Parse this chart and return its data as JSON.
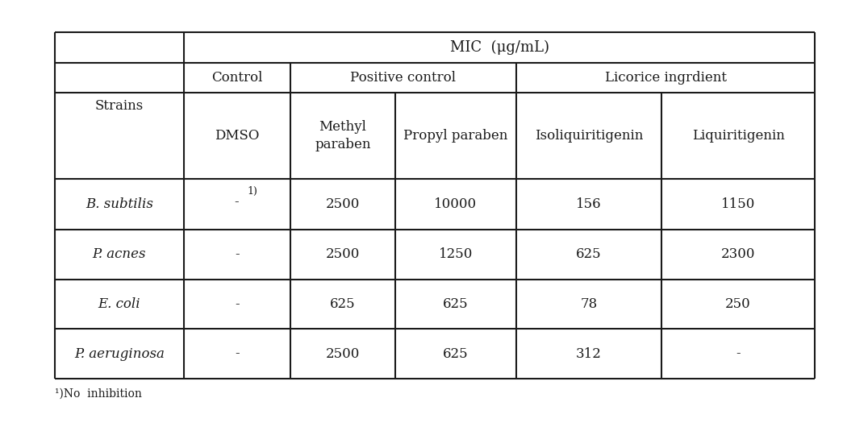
{
  "title_row": "MIC  (μg/mL)",
  "header_row1_labels": [
    "Control",
    "Positive control",
    "Licorice ingrdient"
  ],
  "header_row2_labels": [
    "DMSO",
    "Methyl\nparaben",
    "Propyl paraben",
    "Isoliquiritigenin",
    "Liquiritigenin"
  ],
  "strains": [
    "B. subtilis",
    "P. acnes",
    "E. coli",
    "P. aeruginosa"
  ],
  "data": [
    [
      "-",
      "2500",
      "10000",
      "156",
      "1150"
    ],
    [
      "-",
      "2500",
      "1250",
      "625",
      "2300"
    ],
    [
      "-",
      "625",
      "625",
      "78",
      "250"
    ],
    [
      "-",
      "2500",
      "625",
      "312",
      "-"
    ]
  ],
  "footnote": "¹)No  inhibition",
  "border_color": "#1a1a1a",
  "text_color": "#1a1a1a",
  "background_color": "#ffffff"
}
